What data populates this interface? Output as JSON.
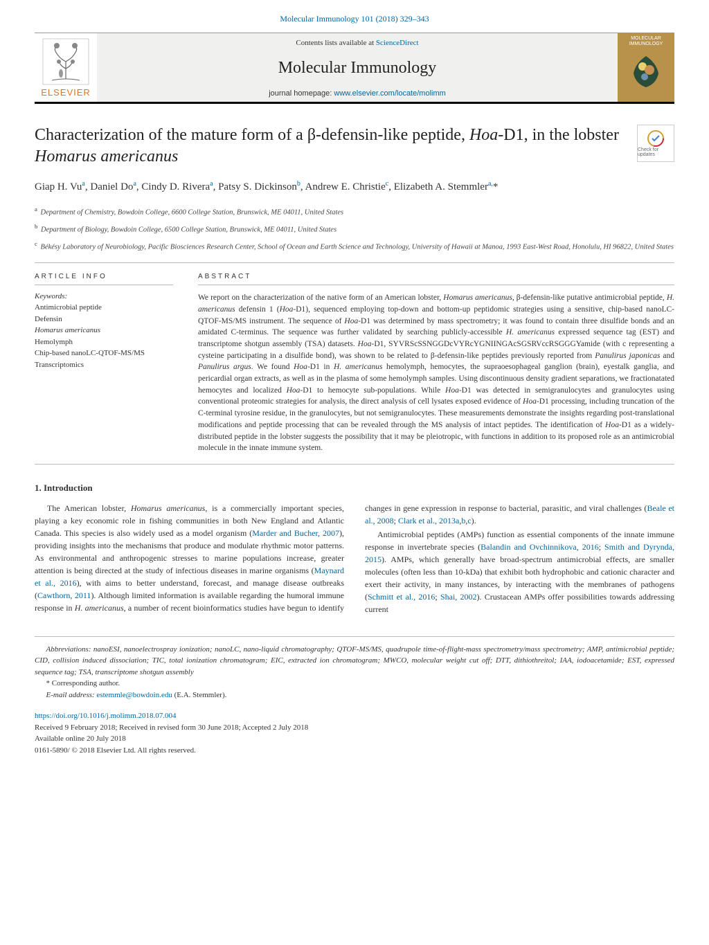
{
  "citation": {
    "journal_link": "Molecular Immunology 101 (2018) 329–343"
  },
  "header": {
    "contents_prefix": "Contents lists available at ",
    "sciencedirect": "ScienceDirect",
    "journal_name": "Molecular Immunology",
    "homepage_prefix": "journal homepage: ",
    "homepage_url": "www.elsevier.com/locate/molimm",
    "publisher": "ELSEVIER",
    "cover_title": "MOLECULAR IMMUNOLOGY"
  },
  "article": {
    "title_html": "Characterization of the mature form of a β-defensin-like peptide, <em>Hoa</em>-D1, in the lobster <em>Homarus americanus</em>",
    "check_badge": "Check for updates"
  },
  "authors_html": "Giap H. Vu<sup>a</sup>, Daniel Do<sup>a</sup>, Cindy D. Rivera<sup>a</sup>, Patsy S. Dickinson<sup>b</sup>, Andrew E. Christie<sup>c</sup>, Elizabeth A. Stemmler<sup>a,</sup>*",
  "affiliations": [
    "Department of Chemistry, Bowdoin College, 6600 College Station, Brunswick, ME 04011, United States",
    "Department of Biology, Bowdoin College, 6500 College Station, Brunswick, ME 04011, United States",
    "Békésy Laboratory of Neurobiology, Pacific Biosciences Research Center, School of Ocean and Earth Science and Technology, University of Hawaii at Manoa, 1993 East-West Road, Honolulu, HI 96822, United States"
  ],
  "info_label": "ARTICLE INFO",
  "abstract_label": "ABSTRACT",
  "keywords_label": "Keywords:",
  "keywords": [
    "Antimicrobial peptide",
    "Defensin",
    "Homarus americanus",
    "Hemolymph",
    "Chip-based nanoLC-QTOF-MS/MS",
    "Transcriptomics"
  ],
  "abstract_html": "We report on the characterization of the native form of an American lobster, <em>Homarus americanus</em>, β-defensin-like putative antimicrobial peptide, <em>H. americanus</em> defensin 1 (<em>Hoa</em>-D1), sequenced employing top-down and bottom-up peptidomic strategies using a sensitive, chip-based nanoLC-QTOF-MS/MS instrument. The sequence of <em>Hoa</em>-D1 was determined by mass spectrometry; it was found to contain three disulfide bonds and an amidated C-terminus. The sequence was further validated by searching publicly-accessible <em>H. americanus</em> expressed sequence tag (EST) and transcriptome shotgun assembly (TSA) datasets. <em>Hoa</em>-D1, SYVRScSSNGGDcVYRcYGNIINGAcSGSRVccRSGGGYamide (with c representing a cysteine participating in a disulfide bond), was shown to be related to β-defensin-like peptides previously reported from <em>Panulirus japonicas</em> and <em>Panulirus argus</em>. We found <em>Hoa</em>-D1 in <em>H. americanus</em> hemolymph, hemocytes, the supraoesophageal ganglion (brain), eyestalk ganglia, and pericardial organ extracts, as well as in the plasma of some hemolymph samples. Using discontinuous density gradient separations, we fractionatated hemocytes and localized <em>Hoa</em>-D1 to hemocyte sub-populations. While <em>Hoa</em>-D1 was detected in semigranulocytes and granulocytes using conventional proteomic strategies for analysis, the direct analysis of cell lysates exposed evidence of <em>Hoa</em>-D1 processing, including truncation of the C-terminal tyrosine residue, in the granulocytes, but not semigranulocytes. These measurements demonstrate the insights regarding post-translational modifications and peptide processing that can be revealed through the MS analysis of intact peptides. The identification of <em>Hoa</em>-D1 as a widely-distributed peptide in the lobster suggests the possibility that it may be pleiotropic, with functions in addition to its proposed role as an antimicrobial molecule in the innate immune system.",
  "intro": {
    "heading": "1. Introduction",
    "p1_html": "The American lobster, <em>Homarus americanus</em>, is a commercially important species, playing a key economic role in fishing communities in both New England and Atlantic Canada. This species is also widely used as a model organism (<span class='cite'>Marder and Bucher, 2007</span>), providing insights into the mechanisms that produce and modulate rhythmic motor patterns. As environmental and anthropogenic stresses to marine populations increase, greater attention is being directed at the study of infectious diseases in marine organisms (<span class='cite'>Maynard et al., 2016</span>), with aims to better understand, forecast, and manage disease outbreaks (<span class='cite'>Cawthorn, 2011</span>). Although limited information is available regarding the humoral immune response in <em>H. americanus</em>, a number of recent bioinformatics studies have begun to identify changes in gene expression in response to bacterial, parasitic, and viral challenges (<span class='cite'>Beale et al., 2008</span>; <span class='cite'>Clark et al., 2013a</span>,<span class='cite'>b</span>,<span class='cite'>c</span>).",
    "p2_html": "Antimicrobial peptides (AMPs) function as essential components of the innate immune response in invertebrate species (<span class='cite'>Balandin and Ovchinnikova, 2016</span>; <span class='cite'>Smith and Dyrynda, 2015</span>). AMPs, which generally have broad-spectrum antimicrobial effects, are smaller molecules (often less than 10-kDa) that exhibit both hydrophobic and cationic character and exert their activity, in many instances, by interacting with the membranes of pathogens (<span class='cite'>Schmitt et al., 2016</span>; <span class='cite'>Shai, 2002</span>). Crustacean AMPs offer possibilities towards addressing current"
  },
  "footer": {
    "abbreviations": "Abbreviations: nanoESI, nanoelectrospray ionization; nanoLC, nano-liquid chromatography; QTOF-MS/MS, quadrupole time-of-flight-mass spectrometry/mass spectrometry; AMP, antimicrobial peptide; CID, collision induced dissociation; TIC, total ionization chromatogram; EIC, extracted ion chromatogram; MWCO, molecular weight cut off; DTT, dithiothreitol; IAA, iodoacetamide; EST, expressed sequence tag; TSA, transcriptome shotgun assembly",
    "corresponding": "* Corresponding author.",
    "email_prefix": "E-mail address: ",
    "email": "estemmle@bowdoin.edu",
    "email_suffix": " (E.A. Stemmler).",
    "doi": "https://doi.org/10.1016/j.molimm.2018.07.004",
    "received": "Received 9 February 2018; Received in revised form 30 June 2018; Accepted 2 July 2018",
    "available": "Available online 20 July 2018",
    "copyright": "0161-5890/ © 2018 Elsevier Ltd. All rights reserved."
  }
}
